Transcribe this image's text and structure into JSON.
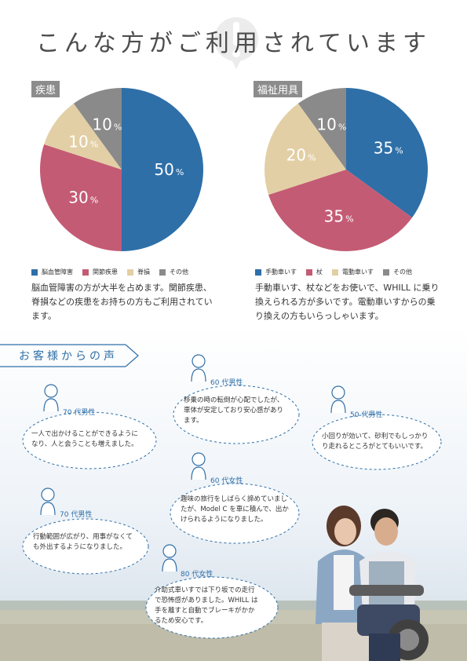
{
  "title": "こんな方がご利用されています",
  "disease": {
    "tag": "疾患",
    "slices": [
      {
        "label": "脳血管障害",
        "value": 50,
        "text": "50",
        "color": "#2e6fa8"
      },
      {
        "label": "関節疾患",
        "value": 30,
        "text": "30",
        "color": "#c45b74"
      },
      {
        "label": "脊損",
        "value": 10,
        "text": "10",
        "color": "#e3cfa5"
      },
      {
        "label": "その他",
        "value": 10,
        "text": "10",
        "color": "#8a8a8a"
      }
    ],
    "description": [
      "脳血管障害の方が大半を占めます。関節疾患、",
      "脊損などの疾患をお持ちの方もご利用されてい",
      "ます。"
    ]
  },
  "equipment": {
    "tag": "福祉用具",
    "slices": [
      {
        "label": "手動車いす",
        "value": 35,
        "text": "35",
        "color": "#2e6fa8"
      },
      {
        "label": "杖",
        "value": 35,
        "text": "35",
        "color": "#c45b74"
      },
      {
        "label": "電動車いす",
        "value": 20,
        "text": "20",
        "color": "#e3cfa5"
      },
      {
        "label": "その他",
        "value": 10,
        "text": "10",
        "color": "#8a8a8a"
      }
    ],
    "description": [
      "手動車いす、杖などをお使いで、WHILL に乗り",
      "換えられる方が多いです。電動車いすからの乗",
      "り換えの方もいらっしゃいます。"
    ]
  },
  "percent_sign": "%",
  "voices_heading": "お客様からの声",
  "voices": [
    {
      "age": "70 代男性",
      "lines": [
        "一人で出かけることができるように",
        "なり、人と会うことも増えました。"
      ]
    },
    {
      "age": "60 代男性",
      "lines": [
        "移乗の時の転倒が心配でしたが、",
        "車体が安定しており安心感があり",
        "ます。"
      ]
    },
    {
      "age": "50 代男性",
      "lines": [
        "小回りが効いて、砂利でもしっかり",
        "り走れるところがとてもいいです。"
      ]
    },
    {
      "age": "60 代女性",
      "lines": [
        "趣味の旅行をしばらく諦めていまし",
        "たが、Model C を車に積んで、出か",
        "けられるようになりました。"
      ]
    },
    {
      "age": "70 代男性",
      "lines": [
        "行動範囲が広がり、用事がなくて",
        "も外出するようになりました。"
      ]
    },
    {
      "age": "80 代女性",
      "lines": [
        "介助式車いすでは下り坂での走行",
        "で恐怖感がありました。WHILL は",
        "手を離すと自動でブレーキがかか",
        "るため安心です。"
      ]
    }
  ],
  "chart_data": [
    {
      "type": "pie",
      "title": "疾患",
      "categories": [
        "脳血管障害",
        "関節疾患",
        "脊損",
        "その他"
      ],
      "values": [
        50,
        30,
        10,
        10
      ]
    },
    {
      "type": "pie",
      "title": "福祉用具",
      "categories": [
        "手動車いす",
        "杖",
        "電動車いす",
        "その他"
      ],
      "values": [
        35,
        35,
        20,
        10
      ]
    }
  ]
}
